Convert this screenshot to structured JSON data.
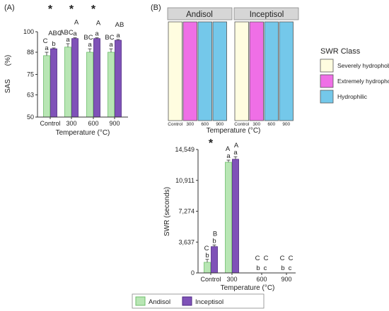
{
  "colors": {
    "andisol": "#b8e6b4",
    "andisol_edge": "#6fbf6d",
    "inceptisol": "#7f52b8",
    "inceptisol_edge": "#4e2a82",
    "severely": "#fffde0",
    "extremely": "#ef6fe6",
    "hydrophilic": "#74c8ea",
    "strip_bg": "#d6d6d6"
  },
  "legend": {
    "series": [
      "Andisol",
      "Inceptisol"
    ]
  },
  "chart_data": [
    {
      "id": "A",
      "type": "bar",
      "panel_label": "(A)",
      "categories": [
        "Control",
        "300",
        "600",
        "900"
      ],
      "series": [
        {
          "name": "Andisol",
          "values": [
            86,
            91,
            88,
            88
          ],
          "errors": [
            2,
            2,
            2,
            2
          ]
        },
        {
          "name": "Inceptisol",
          "values": [
            90,
            96,
            96,
            95
          ],
          "errors": [
            0.5,
            0.5,
            0.5,
            0.5
          ]
        }
      ],
      "xlabel": "Temperature (°C)",
      "ylabel": "SAS",
      "ylabel_unit": "(%)",
      "ylim": [
        50,
        100
      ],
      "yticks": [
        "50",
        "63",
        "75",
        "88",
        "100"
      ],
      "ytick_values": [
        50,
        63,
        75,
        88,
        100
      ],
      "upper_letters": [
        "C",
        "ABC",
        "ABC",
        "A",
        "BC",
        "A",
        "BC",
        "AB"
      ],
      "lower_letters": [
        "a",
        "b",
        "a",
        "a",
        "a",
        "a",
        "a",
        "a"
      ],
      "significance": [
        "*",
        "*",
        "*",
        ""
      ]
    },
    {
      "id": "B_tiles",
      "type": "heatmap",
      "panel_label": "(B)",
      "facets": [
        "Andisol",
        "Inceptisol"
      ],
      "categories": [
        "Control",
        "300",
        "600",
        "900"
      ],
      "classes": [
        [
          "severely",
          "extremely",
          "hydrophilic",
          "hydrophilic"
        ],
        [
          "severely",
          "extremely",
          "hydrophilic",
          "hydrophilic"
        ]
      ],
      "xlabel": "Temperature (°C)",
      "legend_title": "SWR Class",
      "legend_entries": [
        {
          "key": "severely",
          "label": "Severely hydrophobic"
        },
        {
          "key": "extremely",
          "label": "Extremely hydrophobic"
        },
        {
          "key": "hydrophilic",
          "label": "Hydrophilic"
        }
      ]
    },
    {
      "id": "B_bars",
      "type": "bar",
      "categories": [
        "Control",
        "300",
        "600",
        "900"
      ],
      "series": [
        {
          "name": "Andisol",
          "values": [
            1250,
            13050,
            0,
            0
          ],
          "errors": [
            350,
            250,
            0,
            0
          ]
        },
        {
          "name": "Inceptisol",
          "values": [
            3100,
            13400,
            0,
            0
          ],
          "errors": [
            200,
            300,
            0,
            0
          ]
        }
      ],
      "xlabel": "Temperature (°C)",
      "ylabel": "SWR (seconds)",
      "ylim": [
        0,
        14549
      ],
      "yticks": [
        "0",
        "3,637",
        "7,274",
        "10,911",
        "14,549"
      ],
      "ytick_values": [
        0,
        3637,
        7274,
        10911,
        14549
      ],
      "upper_letters": [
        "C",
        "B",
        "A",
        "A",
        "C",
        "C",
        "C",
        "C"
      ],
      "lower_letters": [
        "b",
        "b",
        "a",
        "a",
        "b",
        "c",
        "b",
        "c"
      ],
      "significance": [
        "*",
        "",
        "",
        ""
      ]
    }
  ]
}
